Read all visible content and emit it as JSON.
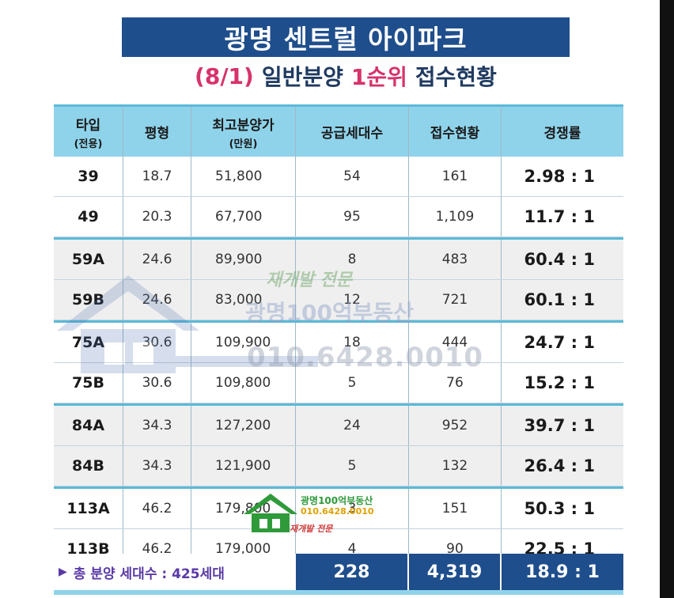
{
  "title": "광명 센트럴 아이파크",
  "subtitle": {
    "date": "(8/1)",
    "part1": "일반분양",
    "part2": "1순위",
    "part3": "접수현황"
  },
  "table": {
    "headers": [
      {
        "main": "타입",
        "sub": "(전용)"
      },
      {
        "main": "평형",
        "sub": ""
      },
      {
        "main": "최고분양가",
        "sub": "(만원)"
      },
      {
        "main": "공급세대수",
        "sub": ""
      },
      {
        "main": "접수현황",
        "sub": ""
      },
      {
        "main": "경쟁률",
        "sub": ""
      }
    ],
    "rows": [
      {
        "type": "39",
        "pyeong": "18.7",
        "price": "51,800",
        "supply": "54",
        "applied": "161",
        "ratio": "2.98 : 1"
      },
      {
        "type": "49",
        "pyeong": "20.3",
        "price": "67,700",
        "supply": "95",
        "applied": "1,109",
        "ratio": "11.7 : 1"
      },
      {
        "type": "59A",
        "pyeong": "24.6",
        "price": "89,900",
        "supply": "8",
        "applied": "483",
        "ratio": "60.4 : 1"
      },
      {
        "type": "59B",
        "pyeong": "24.6",
        "price": "83,000",
        "supply": "12",
        "applied": "721",
        "ratio": "60.1 : 1"
      },
      {
        "type": "75A",
        "pyeong": "30.6",
        "price": "109,900",
        "supply": "18",
        "applied": "444",
        "ratio": "24.7 : 1"
      },
      {
        "type": "75B",
        "pyeong": "30.6",
        "price": "109,800",
        "supply": "5",
        "applied": "76",
        "ratio": "15.2 : 1"
      },
      {
        "type": "84A",
        "pyeong": "34.3",
        "price": "127,200",
        "supply": "24",
        "applied": "952",
        "ratio": "39.7 : 1"
      },
      {
        "type": "84B",
        "pyeong": "34.3",
        "price": "121,900",
        "supply": "5",
        "applied": "132",
        "ratio": "26.4 : 1"
      },
      {
        "type": "113A",
        "pyeong": "46.2",
        "price": "179,800",
        "supply": "3",
        "applied": "151",
        "ratio": "50.3 : 1"
      },
      {
        "type": "113B",
        "pyeong": "46.2",
        "price": "179,000",
        "supply": "4",
        "applied": "90",
        "ratio": "22.5 : 1"
      }
    ],
    "total": {
      "label": "총 분양 세대수 : 425세대",
      "supply": "228",
      "applied": "4,319",
      "ratio": "18.9 : 1"
    }
  },
  "watermark": {
    "line1": "재개발 전문",
    "line2": "광명100억부동산",
    "line3": "010.6428.0010",
    "logo_line1": "광명100억부동산",
    "logo_line2": "010.6428.0010",
    "logo_line3": "재개발 전문"
  }
}
